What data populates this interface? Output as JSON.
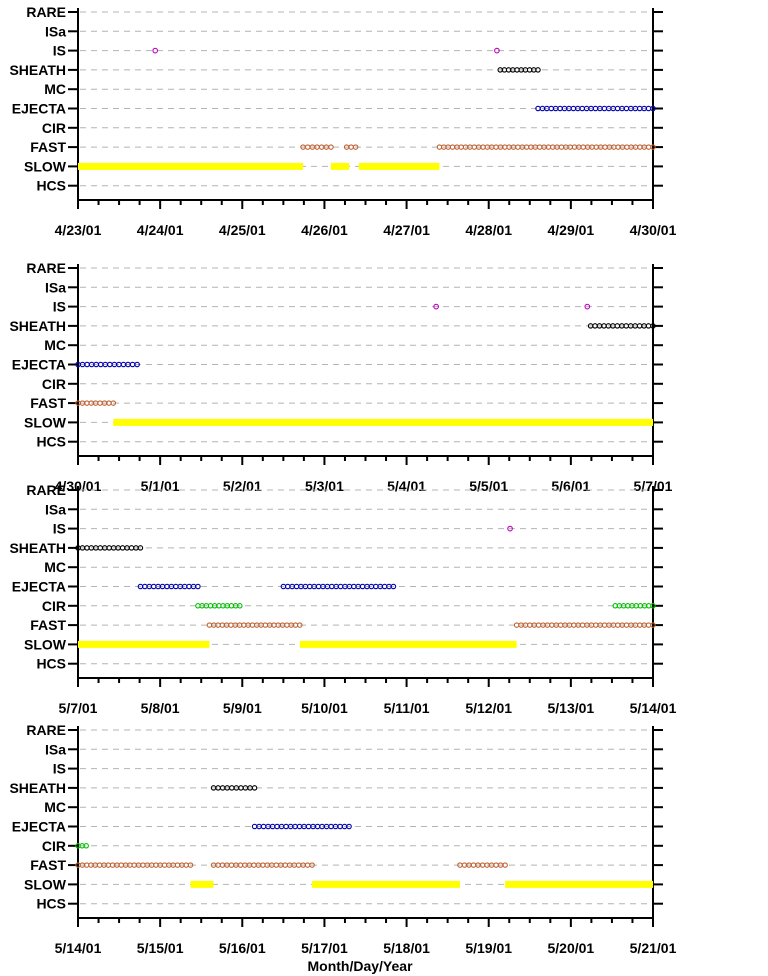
{
  "chart_data": {
    "type": "scatter",
    "panel_count": 4,
    "categories": [
      "RARE",
      "ISa",
      "IS",
      "SHEATH",
      "MC",
      "EJECTA",
      "CIR",
      "FAST",
      "SLOW",
      "HCS"
    ],
    "xlabel": "Month/Day/Year",
    "grid": true,
    "colors": {
      "SLOW": "#ffff00",
      "FAST": "#c06030",
      "CIR": "#00c000",
      "EJECTA": "#0000b0",
      "SHEATH": "#000000",
      "IS": "#c000c0"
    },
    "panels": [
      {
        "x_ticks": [
          "4/23/01",
          "4/24/01",
          "4/25/01",
          "4/26/01",
          "4/27/01",
          "4/28/01",
          "4/29/01",
          "4/30/01"
        ],
        "xlim": [
          "4/23/01",
          "4/30/01"
        ],
        "series": [
          {
            "category": "IS",
            "style": "markers",
            "intervals": [
              [
                0.94,
                0.94
              ],
              [
                5.1,
                5.1
              ]
            ]
          },
          {
            "category": "SHEATH",
            "style": "markers",
            "intervals": [
              [
                5.14,
                5.6
              ]
            ]
          },
          {
            "category": "EJECTA",
            "style": "markers",
            "intervals": [
              [
                5.6,
                7.0
              ]
            ]
          },
          {
            "category": "FAST",
            "style": "markers",
            "intervals": [
              [
                2.74,
                3.08
              ],
              [
                3.27,
                3.38
              ],
              [
                4.4,
                7.0
              ]
            ]
          },
          {
            "category": "SLOW",
            "style": "bar",
            "intervals": [
              [
                0.0,
                2.74
              ],
              [
                3.08,
                3.3
              ],
              [
                3.42,
                4.4
              ]
            ]
          }
        ]
      },
      {
        "x_ticks": [
          "4/30/01",
          "5/1/01",
          "5/2/01",
          "5/3/01",
          "5/4/01",
          "5/5/01",
          "5/6/01",
          "5/7/01"
        ],
        "xlim": [
          "4/30/01",
          "5/7/01"
        ],
        "series": [
          {
            "category": "IS",
            "style": "markers",
            "intervals": [
              [
                4.36,
                4.36
              ],
              [
                6.2,
                6.2
              ]
            ]
          },
          {
            "category": "SHEATH",
            "style": "markers",
            "intervals": [
              [
                6.24,
                7.0
              ]
            ]
          },
          {
            "category": "EJECTA",
            "style": "markers",
            "intervals": [
              [
                0.0,
                0.72
              ]
            ]
          },
          {
            "category": "FAST",
            "style": "markers",
            "intervals": [
              [
                0.0,
                0.43
              ]
            ]
          },
          {
            "category": "SLOW",
            "style": "bar",
            "intervals": [
              [
                0.43,
                7.0
              ]
            ]
          }
        ]
      },
      {
        "x_ticks": [
          "5/7/01",
          "5/8/01",
          "5/9/01",
          "5/10/01",
          "5/11/01",
          "5/12/01",
          "5/13/01",
          "5/14/01"
        ],
        "xlim": [
          "5/7/01",
          "5/14/01"
        ],
        "series": [
          {
            "category": "IS",
            "style": "markers",
            "intervals": [
              [
                5.26,
                5.26
              ]
            ]
          },
          {
            "category": "SHEATH",
            "style": "markers",
            "intervals": [
              [
                0.0,
                0.76
              ]
            ]
          },
          {
            "category": "EJECTA",
            "style": "markers",
            "intervals": [
              [
                0.76,
                1.46
              ],
              [
                2.5,
                3.84
              ]
            ]
          },
          {
            "category": "CIR",
            "style": "markers",
            "intervals": [
              [
                1.46,
                1.97
              ],
              [
                6.54,
                7.0
              ]
            ]
          },
          {
            "category": "FAST",
            "style": "markers",
            "intervals": [
              [
                1.6,
                2.7
              ],
              [
                5.34,
                7.0
              ]
            ]
          },
          {
            "category": "SLOW",
            "style": "bar",
            "intervals": [
              [
                0.0,
                1.6
              ],
              [
                2.7,
                5.34
              ]
            ]
          }
        ]
      },
      {
        "x_ticks": [
          "5/14/01",
          "5/15/01",
          "5/16/01",
          "5/17/01",
          "5/18/01",
          "5/19/01",
          "5/20/01",
          "5/21/01"
        ],
        "xlim": [
          "5/14/01",
          "5/21/01"
        ],
        "series": [
          {
            "category": "SHEATH",
            "style": "markers",
            "intervals": [
              [
                1.65,
                2.15
              ]
            ]
          },
          {
            "category": "EJECTA",
            "style": "markers",
            "intervals": [
              [
                2.15,
                3.3
              ]
            ]
          },
          {
            "category": "CIR",
            "style": "markers",
            "intervals": [
              [
                0.0,
                0.1
              ]
            ]
          },
          {
            "category": "FAST",
            "style": "markers",
            "intervals": [
              [
                0.0,
                1.37
              ],
              [
                1.65,
                2.85
              ],
              [
                4.65,
                5.2
              ]
            ]
          },
          {
            "category": "SLOW",
            "style": "bar",
            "intervals": [
              [
                1.37,
                1.65
              ],
              [
                2.85,
                4.65
              ],
              [
                5.2,
                7.0
              ]
            ]
          }
        ]
      }
    ]
  }
}
